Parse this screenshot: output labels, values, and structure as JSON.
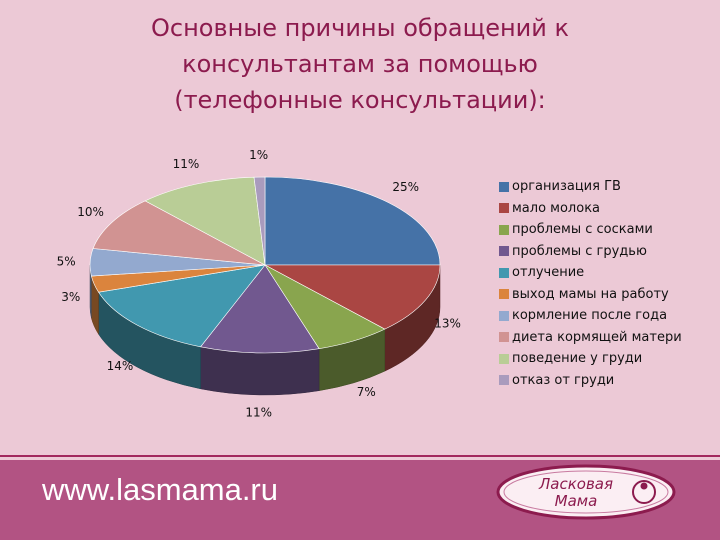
{
  "title_lines": [
    "Основные причины обращений к",
    "консультантам за помощью",
    "(телефонные консультации):"
  ],
  "footer": {
    "url": "www.lasmama.ru",
    "logo_text": "Ласковая Мама"
  },
  "colors": {
    "background": "#ecc9d6",
    "title": "#8c1b4e",
    "footer": "#b25383"
  },
  "chart_data": {
    "type": "pie",
    "style": "3d",
    "title": "",
    "legend_position": "right",
    "categories": [
      "организация ГВ",
      "мало молока",
      "проблемы с сосками",
      "проблемы с грудью",
      "отлучение",
      "выход мамы на работу",
      "кормление после года",
      "диета кормящей матери",
      "поведение у груди",
      "отказ от груди"
    ],
    "values": [
      25,
      13,
      7,
      11,
      14,
      3,
      5,
      10,
      11,
      1
    ],
    "labels": [
      "25%",
      "13%",
      "7%",
      "11%",
      "14%",
      "3%",
      "5%",
      "10%",
      "11%",
      "1%"
    ],
    "colors": [
      "#4572a7",
      "#aa4643",
      "#89a54e",
      "#71588f",
      "#4198af",
      "#db843d",
      "#93a9cf",
      "#d19392",
      "#b9cd96",
      "#a99bbd"
    ]
  }
}
